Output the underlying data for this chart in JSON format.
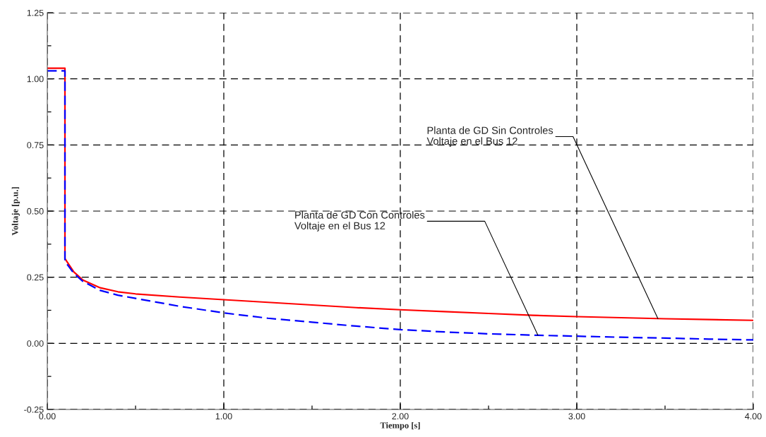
{
  "chart_data": {
    "type": "line",
    "xlabel": "Tiempo [s]",
    "ylabel": "Voltaje [p.u.]",
    "xlim": [
      0,
      4
    ],
    "ylim": [
      -0.25,
      1.25
    ],
    "xticks": [
      {
        "value": 0,
        "label": "0.00"
      },
      {
        "value": 0.5,
        "label": null
      },
      {
        "value": 1,
        "label": "1.00"
      },
      {
        "value": 1.5,
        "label": null
      },
      {
        "value": 2,
        "label": "2.00"
      },
      {
        "value": 2.5,
        "label": null
      },
      {
        "value": 3,
        "label": "3.00"
      },
      {
        "value": 3.5,
        "label": null
      },
      {
        "value": 4,
        "label": "4.00"
      }
    ],
    "yticks": [
      {
        "value": -0.25,
        "label": "-0.25"
      },
      {
        "value": -0.125,
        "label": null
      },
      {
        "value": 0,
        "label": "0.00"
      },
      {
        "value": 0.125,
        "label": null
      },
      {
        "value": 0.25,
        "label": "0.25"
      },
      {
        "value": 0.375,
        "label": null
      },
      {
        "value": 0.5,
        "label": "0.50"
      },
      {
        "value": 0.625,
        "label": null
      },
      {
        "value": 0.75,
        "label": "0.75"
      },
      {
        "value": 0.875,
        "label": null
      },
      {
        "value": 1,
        "label": "1.00"
      },
      {
        "value": 1.125,
        "label": null
      },
      {
        "value": 1.25,
        "label": "1.25"
      }
    ],
    "grid": true,
    "marker": "none",
    "series": [
      {
        "color": "#ff0000",
        "line_style": "solid",
        "x": [
          0,
          0.1,
          0.1,
          0.15,
          0.2,
          0.3,
          0.4,
          0.5,
          0.75,
          1.0,
          1.25,
          1.5,
          1.75,
          2.0,
          2.25,
          2.5,
          2.75,
          3.0,
          3.25,
          3.5,
          3.75,
          4.0
        ],
        "values": [
          1.04,
          1.04,
          0.32,
          0.27,
          0.24,
          0.21,
          0.195,
          0.187,
          0.175,
          0.165,
          0.155,
          0.145,
          0.135,
          0.127,
          0.12,
          0.113,
          0.106,
          0.101,
          0.097,
          0.093,
          0.09,
          0.087
        ]
      },
      {
        "color": "#0000ff",
        "line_style": "dashed",
        "x": [
          0,
          0.1,
          0.1,
          0.15,
          0.2,
          0.3,
          0.4,
          0.5,
          0.75,
          1.0,
          1.25,
          1.5,
          1.75,
          2.0,
          2.25,
          2.5,
          2.75,
          3.0,
          3.25,
          3.5,
          3.75,
          4.0
        ],
        "values": [
          1.03,
          1.03,
          0.31,
          0.265,
          0.235,
          0.2,
          0.182,
          0.17,
          0.14,
          0.115,
          0.095,
          0.08,
          0.065,
          0.052,
          0.043,
          0.036,
          0.031,
          0.027,
          0.023,
          0.02,
          0.016,
          0.013
        ]
      }
    ],
    "annotations": [
      {
        "text": "Planta de GD Sin Controles\nVoltaje en el Bus 12",
        "x": 3.46,
        "y": 0.093
      },
      {
        "text": "Planta de GD Con Controles\nVoltaje en el Bus 12",
        "x": 2.78,
        "y": 0.03
      }
    ]
  }
}
